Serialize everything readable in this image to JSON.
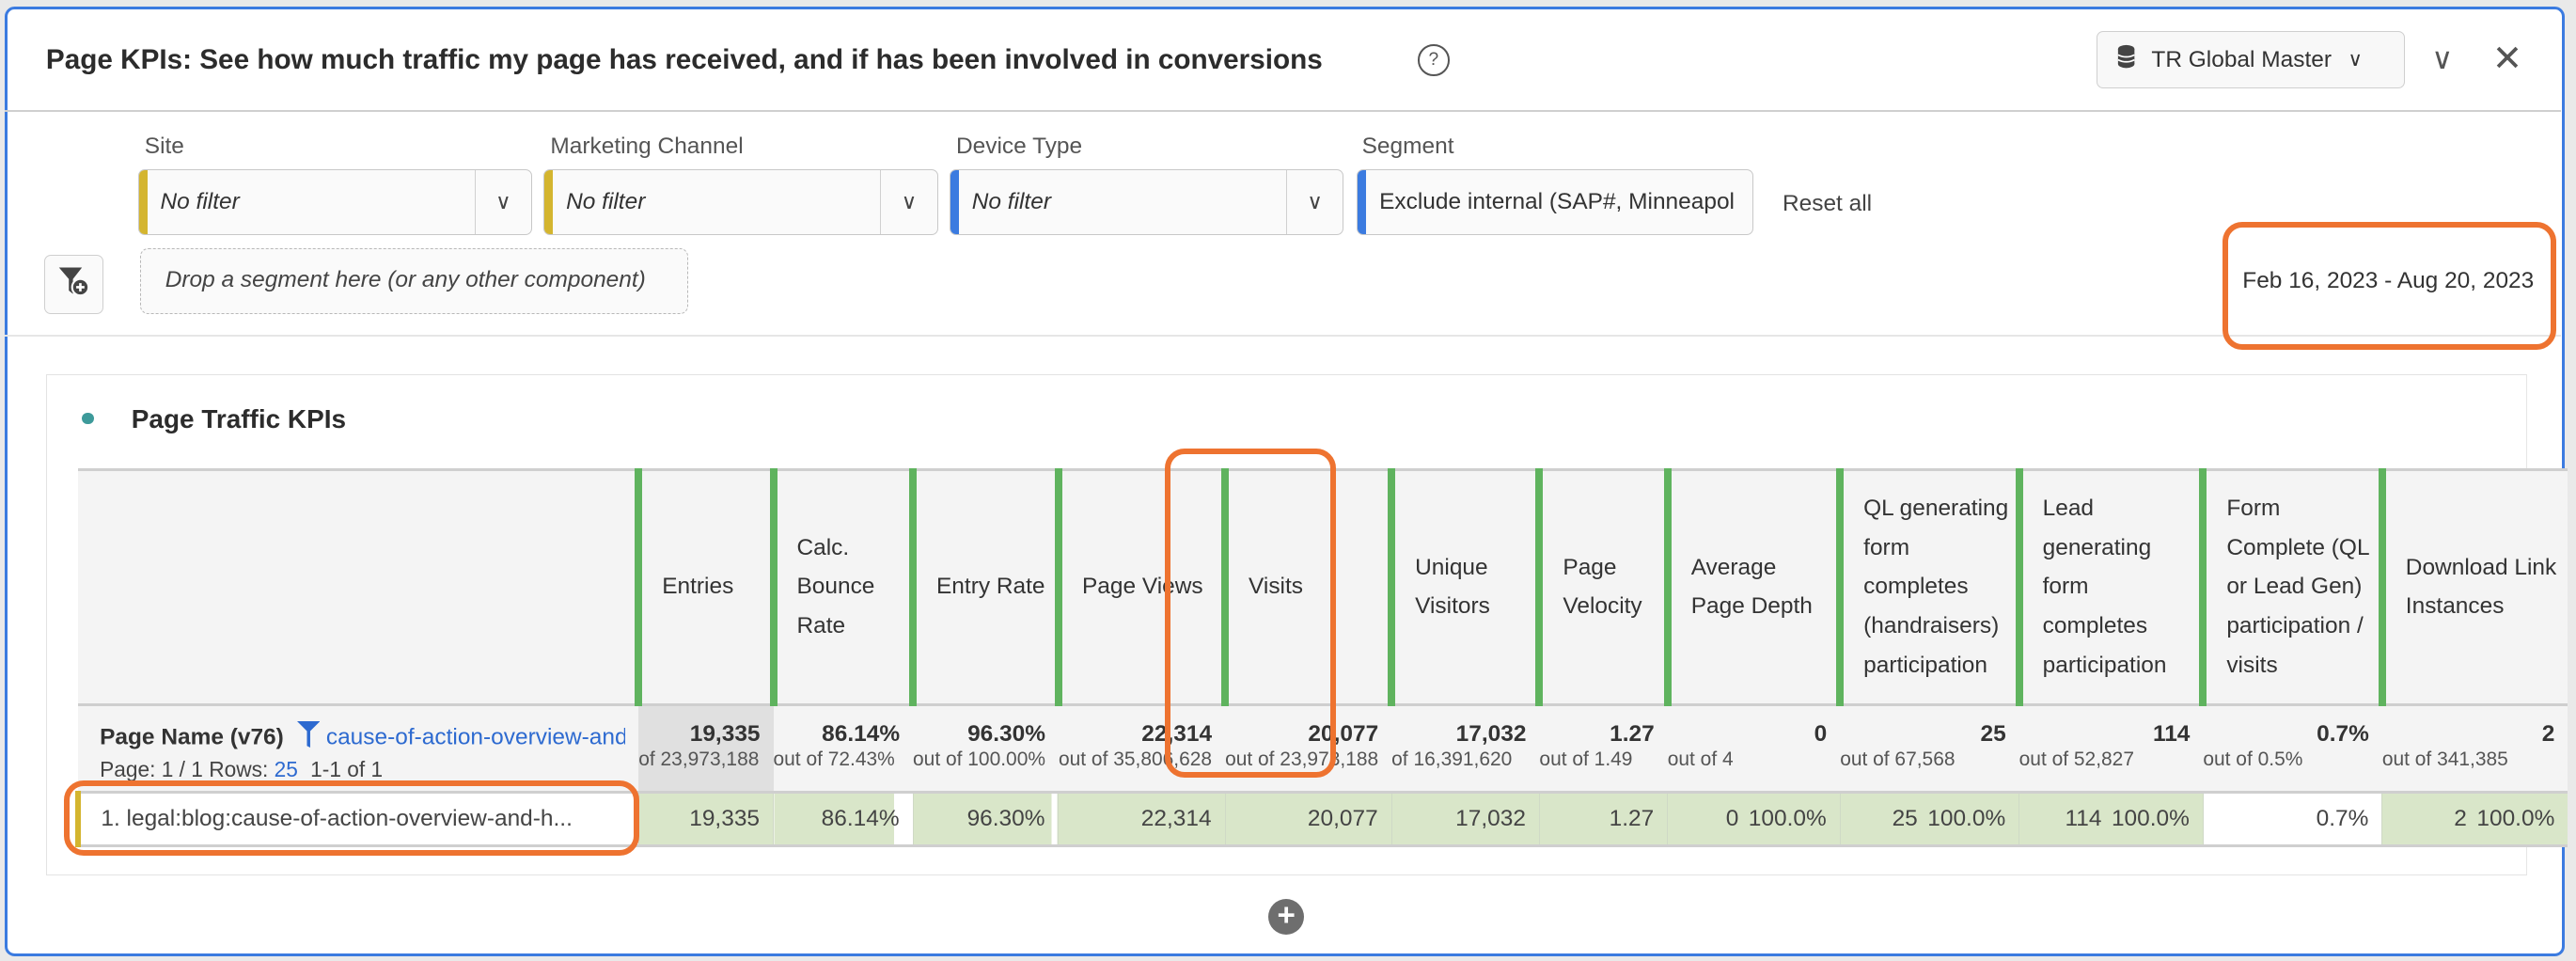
{
  "header": {
    "title": "Page KPIs: See how much traffic my page has received, and if has been involved in conversions",
    "report_suite": "TR Global Master"
  },
  "filters": [
    {
      "label": "Site",
      "value": "No filter",
      "color": "#d4b52f"
    },
    {
      "label": "Marketing Channel",
      "value": "No filter",
      "color": "#d4b52f"
    },
    {
      "label": "Device Type",
      "value": "No filter",
      "color": "#3b7be0"
    },
    {
      "label": "Segment",
      "value": "Exclude internal (SAP#, Minneapol",
      "color": "#3b7be0"
    }
  ],
  "reset_all": "Reset all",
  "drop_zone": "Drop a segment here (or any other component)",
  "date_range": "Feb 16, 2023 - Aug 20, 2023",
  "panel": {
    "title": "Page Traffic KPIs",
    "dimension": "Page Name (v76)",
    "dimension_filter": "cause-of-action-overview-and-h",
    "paging": {
      "page": "Page: 1 / 1",
      "rows_label": "Rows:",
      "rows": "25",
      "range": "1-1 of 1"
    },
    "columns": [
      {
        "header": "Entries",
        "total": "19,335",
        "total_of": "of 23,973,188",
        "value": "19,335",
        "pct": "",
        "fill": 1
      },
      {
        "header": "Calc. Bounce Rate",
        "total": "86.14%",
        "total_of": "out of 72.43%",
        "value": "86.14%",
        "pct": "",
        "fill": 0.86
      },
      {
        "header": "Entry Rate",
        "total": "96.30%",
        "total_of": "out of 100.00%",
        "value": "96.30%",
        "pct": "",
        "fill": 0.963
      },
      {
        "header": "Page Views",
        "total": "22,314",
        "total_of": "out of 35,806,628",
        "value": "22,314",
        "pct": "",
        "fill": 1
      },
      {
        "header": "Visits",
        "total": "20,077",
        "total_of": "out of 23,973,188",
        "value": "20,077",
        "pct": "",
        "fill": 1
      },
      {
        "header": "Unique Visitors",
        "total": "17,032",
        "total_of": "of 16,391,620",
        "value": "17,032",
        "pct": "",
        "fill": 1
      },
      {
        "header": "Page Velocity",
        "total": "1.27",
        "total_of": "out of 1.49",
        "value": "1.27",
        "pct": "",
        "fill": 1
      },
      {
        "header": "Average Page Depth",
        "total": "0",
        "total_of": "out of 4",
        "value": "0",
        "pct": "100.0%",
        "fill": 1
      },
      {
        "header": "QL generating form completes (handraisers) participation",
        "total": "25",
        "total_of": "out of 67,568",
        "value": "25",
        "pct": "100.0%",
        "fill": 1
      },
      {
        "header": "Lead generating form completes participation",
        "total": "114",
        "total_of": "out of 52,827",
        "value": "114",
        "pct": "100.0%",
        "fill": 1
      },
      {
        "header": "Form Complete (QL or Lead Gen) participation / visits",
        "total": "0.7%",
        "total_of": "out of 0.5%",
        "value": "0.7%",
        "pct": "",
        "fill": 0
      },
      {
        "header": "Download Link Instances",
        "total": "2",
        "total_of": "out of 341,385",
        "value": "2",
        "pct": "100.0%",
        "fill": 1
      }
    ],
    "rows": [
      {
        "label": "1.  legal:blog:cause-of-action-overview-and-h..."
      }
    ]
  },
  "colors": {
    "accent": "#3b7be0",
    "highlight": "#ee7330",
    "bar": "#5fb35e",
    "cell_fill": "#d9e6c9"
  }
}
